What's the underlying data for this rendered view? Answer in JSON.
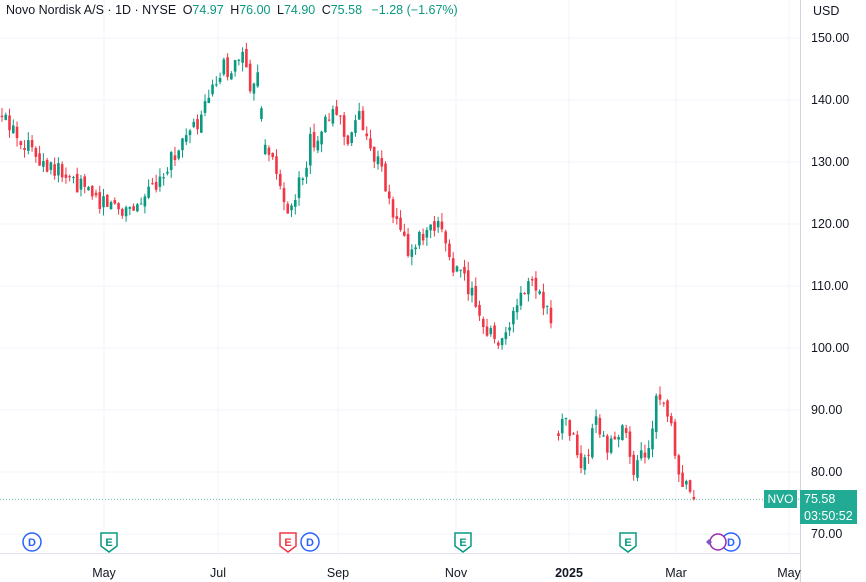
{
  "header": {
    "title": "Novo Nordisk A/S · 1D · NYSE",
    "open_key": "O",
    "open": "74.97",
    "high_key": "H",
    "high": "76.00",
    "low_key": "L",
    "low": "74.90",
    "close_key": "C",
    "close": "75.58",
    "change": "−1.28 (−1.67%)",
    "currency": "USD"
  },
  "price_tag": {
    "symbol": "NVO",
    "price": "75.58",
    "countdown": "03:50:52"
  },
  "colors": {
    "up": "#089981",
    "down": "#f23645",
    "grid": "#f0f3fa",
    "text": "#131722",
    "tag": "#22ab94"
  },
  "chart_data": {
    "type": "candlestick",
    "ylim": [
      67,
      153
    ],
    "y_ticks": [
      "150.00",
      "140.00",
      "130.00",
      "120.00",
      "110.00",
      "100.00",
      "90.00",
      "80.00",
      "70.00"
    ],
    "x_ticks": [
      "May",
      "Jul",
      "Sep",
      "Nov",
      "2025",
      "Mar",
      "May"
    ],
    "last_price": 75.58,
    "anchors": [
      [
        0,
        137
      ],
      [
        8,
        132
      ],
      [
        18,
        127
      ],
      [
        26,
        124
      ],
      [
        33,
        122.5
      ],
      [
        38,
        124
      ],
      [
        43,
        129
      ],
      [
        48,
        133
      ],
      [
        52,
        136
      ],
      [
        55,
        140
      ],
      [
        57,
        143
      ],
      [
        59,
        145
      ],
      [
        62,
        145.5
      ],
      [
        64,
        147
      ],
      [
        66,
        141
      ],
      [
        68,
        143
      ],
      [
        70,
        132
      ],
      [
        73,
        128
      ],
      [
        76,
        121
      ],
      [
        79,
        126
      ],
      [
        82,
        133
      ],
      [
        86,
        136
      ],
      [
        89,
        138
      ],
      [
        92,
        134
      ],
      [
        95,
        137
      ],
      [
        98,
        133
      ],
      [
        101,
        128
      ],
      [
        104,
        121
      ],
      [
        108,
        116
      ],
      [
        113,
        118
      ],
      [
        116,
        119
      ],
      [
        118,
        117
      ],
      [
        120,
        113
      ],
      [
        123,
        111
      ],
      [
        126,
        107.5
      ],
      [
        129,
        103
      ],
      [
        132,
        101
      ],
      [
        135,
        104
      ],
      [
        138,
        108
      ],
      [
        141,
        111
      ],
      [
        144,
        108
      ],
      [
        146,
        103.5
      ],
      [
        147.4,
        87
      ],
      [
        150,
        88
      ],
      [
        152,
        85
      ],
      [
        154,
        81
      ],
      [
        156,
        83
      ],
      [
        158,
        88
      ],
      [
        160,
        85
      ],
      [
        162,
        84
      ],
      [
        164,
        87
      ],
      [
        166,
        86
      ],
      [
        168,
        79
      ],
      [
        170,
        82
      ],
      [
        172,
        85
      ],
      [
        174,
        91
      ],
      [
        176,
        90
      ],
      [
        178,
        87
      ],
      [
        180,
        78
      ],
      [
        182,
        77
      ],
      [
        184,
        75.6
      ]
    ],
    "gap": [
      146.5,
      147.4
    ],
    "events": [
      {
        "label": "D",
        "kind": "dividend"
      },
      {
        "label": "E",
        "kind": "earnings"
      },
      {
        "label": "E",
        "kind": "earnings-negative"
      },
      {
        "label": "D",
        "kind": "dividend"
      },
      {
        "label": "E",
        "kind": "earnings"
      },
      {
        "label": "E",
        "kind": "earnings"
      },
      {
        "label": "D",
        "kind": "dividend"
      }
    ]
  }
}
